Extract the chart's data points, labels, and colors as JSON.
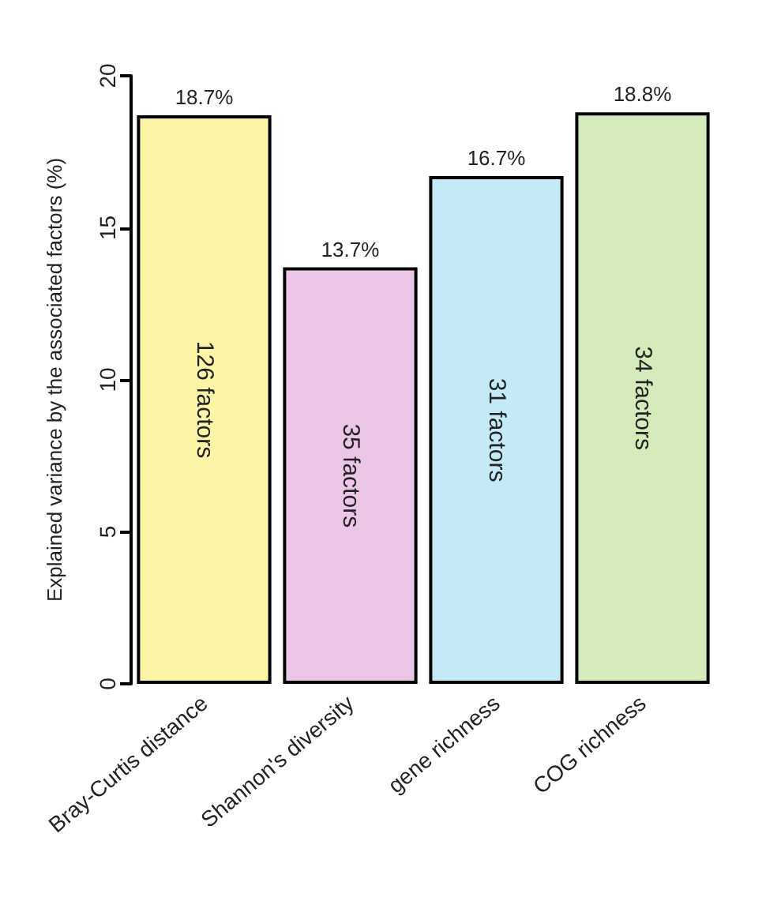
{
  "chart_data": {
    "type": "bar",
    "ylabel": "Explained variance by the associated factors (%)",
    "categories": [
      "Bray-Curtis distance",
      "Shannon's diversity",
      "gene richness",
      "COG richness"
    ],
    "values": [
      18.7,
      13.7,
      16.7,
      18.8
    ],
    "colors": [
      "#fdf5a6",
      "#ecc6e6",
      "#c4e9f7",
      "#d6ebbc"
    ],
    "value_labels": [
      "18.7%",
      "13.7%",
      "16.7%",
      "18.8%"
    ],
    "annotations": [
      "126 factors",
      "35 factors",
      "31 factors",
      "34 factors"
    ],
    "ylim": [
      0,
      20
    ],
    "yticks": [
      0,
      5,
      10,
      15,
      20
    ],
    "grid": false
  }
}
